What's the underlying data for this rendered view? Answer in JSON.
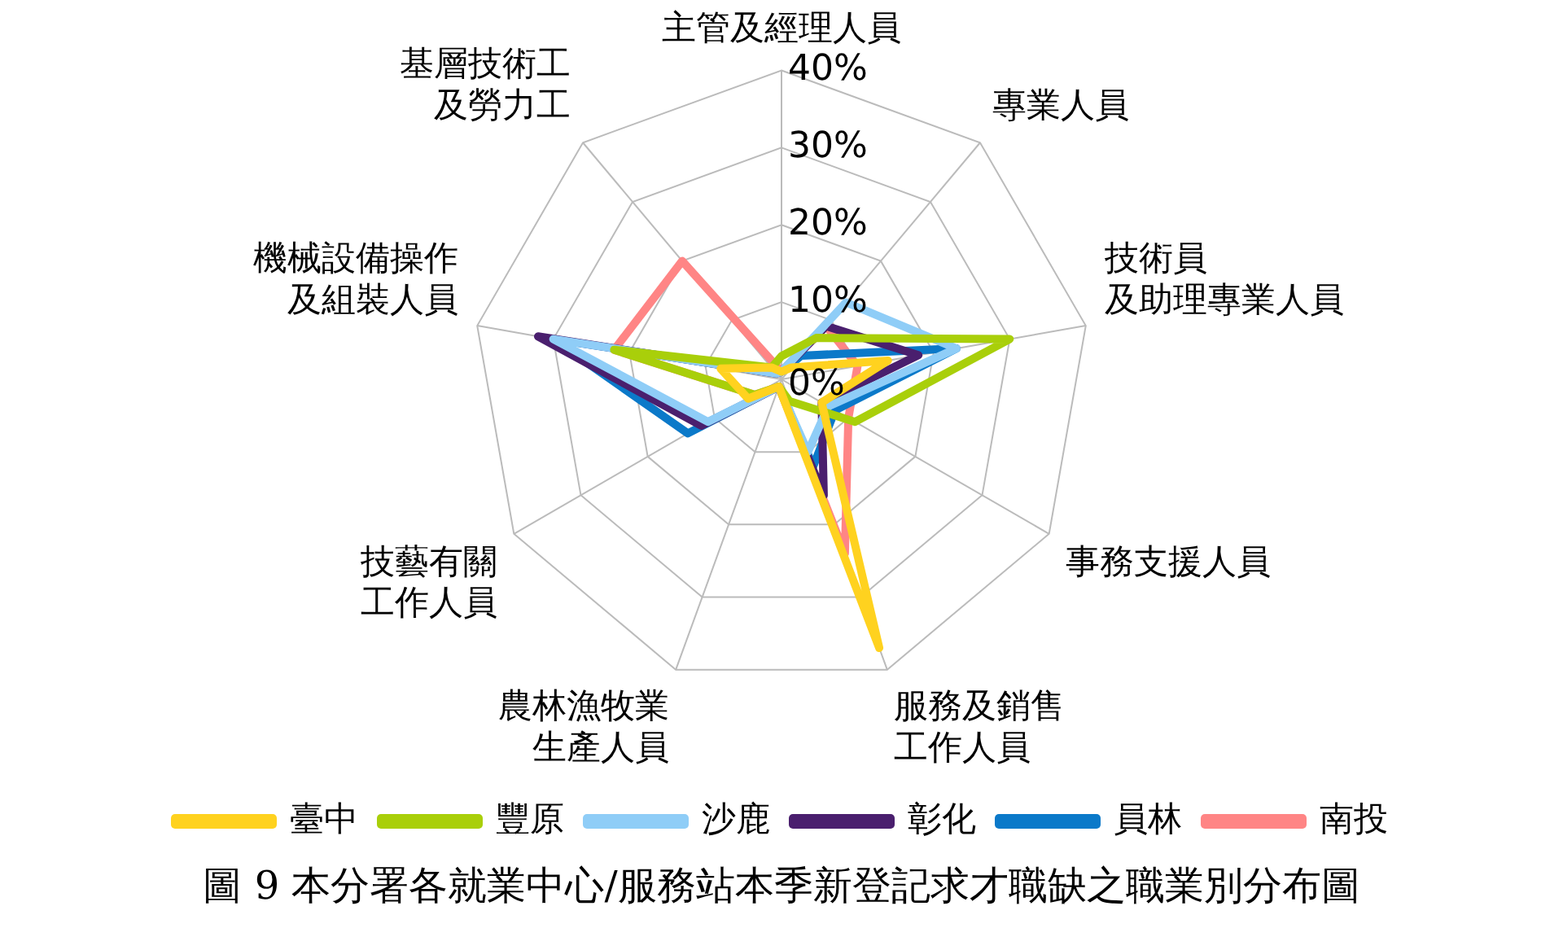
{
  "chart_data": {
    "type": "radar",
    "title": "圖 9 本分署各就業中心/服務站本季新登記求才職缺之職業別分布圖",
    "categories": [
      "主管及經理人員",
      "專業人員",
      "技術員及助理專業人員",
      "事務支援人員",
      "服務及銷售工作人員",
      "農林漁牧業生產人員",
      "技藝有關工作人員",
      "機械設備操作及組裝人員",
      "基層技術工及勞力工"
    ],
    "series": [
      {
        "name": "臺中",
        "color": "#ffd21f",
        "values": [
          1,
          2,
          14,
          6,
          37,
          1,
          5,
          8,
          2
        ]
      },
      {
        "name": "豐原",
        "color": "#a9cf0a",
        "values": [
          3,
          7,
          30,
          11,
          3,
          1,
          4,
          22,
          2
        ]
      },
      {
        "name": "沙鹿",
        "color": "#8fcdf7",
        "values": [
          1,
          13,
          23,
          7,
          10,
          1,
          11,
          30,
          1
        ]
      },
      {
        "name": "彰化",
        "color": "#4a1f6e",
        "values": [
          1,
          9,
          18,
          6,
          16,
          1,
          12,
          32,
          1
        ]
      },
      {
        "name": "員林",
        "color": "#0b79c9",
        "values": [
          1,
          4,
          23,
          8,
          12,
          1,
          14,
          30,
          1
        ]
      },
      {
        "name": "南投",
        "color": "#ff8585",
        "values": [
          1,
          9,
          10,
          10,
          24,
          1,
          4,
          22,
          20
        ]
      }
    ],
    "ylim": [
      0,
      40
    ],
    "yticks": [
      {
        "value": 0,
        "label": "0%"
      },
      {
        "value": 10,
        "label": "10%"
      },
      {
        "value": 20,
        "label": "20%"
      },
      {
        "value": 30,
        "label": "30%"
      },
      {
        "value": 40,
        "label": "40%"
      }
    ],
    "grid": true,
    "legend": "bottom",
    "marker": "none",
    "line_style": "solid"
  }
}
